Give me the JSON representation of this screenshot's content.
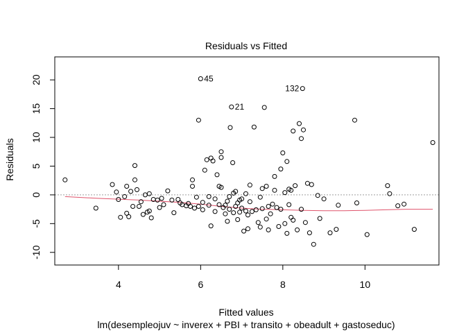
{
  "chart_data": {
    "type": "scatter",
    "title": "Residuals vs Fitted",
    "xlabel": "Fitted values",
    "subtitle": "lm(desempleojuv ~ inverex + PBI + transito + obeadult + gastoseduc)",
    "ylabel": "Residuals",
    "xlim": [
      2.45,
      11.8
    ],
    "ylim": [
      -12.2,
      24
    ],
    "xticks": [
      4,
      6,
      8,
      10
    ],
    "yticks": [
      -10,
      -5,
      0,
      5,
      10,
      15,
      20
    ],
    "reference_line_y": 0,
    "grid": false,
    "points": [
      [
        2.7,
        2.6
      ],
      [
        3.45,
        -2.3
      ],
      [
        3.85,
        1.8
      ],
      [
        3.95,
        0.5
      ],
      [
        4.0,
        -0.8
      ],
      [
        4.05,
        -3.9
      ],
      [
        4.15,
        -0.3
      ],
      [
        4.2,
        -3.2
      ],
      [
        4.2,
        1.5
      ],
      [
        4.25,
        -3.8
      ],
      [
        4.3,
        0.6
      ],
      [
        4.35,
        -2.0
      ],
      [
        4.4,
        5.1
      ],
      [
        4.4,
        2.6
      ],
      [
        4.45,
        0.9
      ],
      [
        4.5,
        -2.0
      ],
      [
        4.55,
        -1.2
      ],
      [
        4.6,
        -3.4
      ],
      [
        4.65,
        0.0
      ],
      [
        4.7,
        -3.0
      ],
      [
        4.75,
        0.2
      ],
      [
        4.75,
        -2.8
      ],
      [
        4.8,
        -4.0
      ],
      [
        4.85,
        -0.8
      ],
      [
        4.95,
        -0.9
      ],
      [
        5.0,
        -2.2
      ],
      [
        5.05,
        -0.6
      ],
      [
        5.1,
        -1.7
      ],
      [
        5.2,
        0.7
      ],
      [
        5.3,
        -0.9
      ],
      [
        5.35,
        -3.1
      ],
      [
        5.45,
        -0.8
      ],
      [
        5.5,
        -1.4
      ],
      [
        5.55,
        -1.7
      ],
      [
        5.65,
        -1.9
      ],
      [
        5.7,
        -1.5
      ],
      [
        5.75,
        -2.0
      ],
      [
        5.8,
        2.6
      ],
      [
        5.8,
        1.5
      ],
      [
        5.85,
        -2.3
      ],
      [
        5.9,
        -0.4
      ],
      [
        5.95,
        -2.0
      ],
      [
        5.95,
        13.0
      ],
      [
        6.0,
        20.2
      ],
      [
        6.05,
        -1.3
      ],
      [
        6.05,
        -2.6
      ],
      [
        6.1,
        4.3
      ],
      [
        6.15,
        6.1
      ],
      [
        6.2,
        -1.8
      ],
      [
        6.2,
        -0.3
      ],
      [
        6.25,
        -5.4
      ],
      [
        6.25,
        6.4
      ],
      [
        6.3,
        5.9
      ],
      [
        6.35,
        -2.9
      ],
      [
        6.35,
        -0.7
      ],
      [
        6.4,
        3.5
      ],
      [
        6.45,
        -1.7
      ],
      [
        6.45,
        1.5
      ],
      [
        6.5,
        1.3
      ],
      [
        6.5,
        6.5
      ],
      [
        6.5,
        7.5
      ],
      [
        6.55,
        -2.2
      ],
      [
        6.6,
        -3.3
      ],
      [
        6.6,
        -1.8
      ],
      [
        6.65,
        -1.1
      ],
      [
        6.65,
        -4.6
      ],
      [
        6.7,
        -2.5
      ],
      [
        6.7,
        -0.3
      ],
      [
        6.72,
        11.7
      ],
      [
        6.75,
        15.3
      ],
      [
        6.78,
        5.6
      ],
      [
        6.8,
        -3.1
      ],
      [
        6.8,
        0.3
      ],
      [
        6.85,
        -2.0
      ],
      [
        6.85,
        0.6
      ],
      [
        6.9,
        -4.3
      ],
      [
        6.9,
        -1.4
      ],
      [
        6.95,
        -0.9
      ],
      [
        6.95,
        -3.0
      ],
      [
        7.0,
        -0.7
      ],
      [
        7.0,
        -2.3
      ],
      [
        7.05,
        -6.3
      ],
      [
        7.1,
        -2.8
      ],
      [
        7.1,
        0.2
      ],
      [
        7.15,
        -5.9
      ],
      [
        7.15,
        -3.5
      ],
      [
        7.2,
        1.7
      ],
      [
        7.2,
        -1.2
      ],
      [
        7.25,
        -2.9
      ],
      [
        7.3,
        11.8
      ],
      [
        7.35,
        -2.6
      ],
      [
        7.4,
        -4.8
      ],
      [
        7.45,
        -5.6
      ],
      [
        7.45,
        -0.4
      ],
      [
        7.5,
        -2.4
      ],
      [
        7.5,
        1.1
      ],
      [
        7.55,
        15.2
      ],
      [
        7.6,
        -4.2
      ],
      [
        7.6,
        1.5
      ],
      [
        7.65,
        -6.1
      ],
      [
        7.65,
        -2.0
      ],
      [
        7.7,
        -3.3
      ],
      [
        7.75,
        -1.6
      ],
      [
        7.8,
        3.2
      ],
      [
        7.8,
        0.8
      ],
      [
        7.85,
        -2.2
      ],
      [
        7.9,
        -5.5
      ],
      [
        7.95,
        -2.5
      ],
      [
        7.95,
        4.5
      ],
      [
        8.0,
        7.3
      ],
      [
        8.05,
        -5.0
      ],
      [
        8.05,
        0.4
      ],
      [
        8.1,
        -6.7
      ],
      [
        8.1,
        5.8
      ],
      [
        8.15,
        -1.7
      ],
      [
        8.15,
        1.0
      ],
      [
        8.2,
        0.8
      ],
      [
        8.2,
        -3.9
      ],
      [
        8.25,
        -4.4
      ],
      [
        8.25,
        11.1
      ],
      [
        8.3,
        1.6
      ],
      [
        8.35,
        -6.1
      ],
      [
        8.4,
        12.4
      ],
      [
        8.45,
        -2.5
      ],
      [
        8.45,
        9.8
      ],
      [
        8.48,
        18.5
      ],
      [
        8.5,
        11.3
      ],
      [
        8.55,
        -4.8
      ],
      [
        8.6,
        2.0
      ],
      [
        8.65,
        -6.6
      ],
      [
        8.7,
        1.8
      ],
      [
        8.75,
        -8.6
      ],
      [
        8.85,
        -0.1
      ],
      [
        8.9,
        -4.1
      ],
      [
        9.0,
        -0.7
      ],
      [
        9.15,
        -6.6
      ],
      [
        9.3,
        -6.0
      ],
      [
        9.35,
        -1.8
      ],
      [
        9.75,
        13.0
      ],
      [
        9.8,
        -1.4
      ],
      [
        10.05,
        -6.9
      ],
      [
        10.55,
        1.6
      ],
      [
        10.6,
        0.2
      ],
      [
        10.8,
        -1.9
      ],
      [
        10.95,
        -1.6
      ],
      [
        11.2,
        -6.0
      ],
      [
        11.65,
        9.1
      ]
    ],
    "labels": [
      {
        "text": "45",
        "x": 6.0,
        "y": 20.2
      },
      {
        "text": "21",
        "x": 6.75,
        "y": 15.3
      },
      {
        "text": "132",
        "x": 8.48,
        "y": 18.5
      }
    ],
    "smooth_line": [
      [
        2.7,
        -0.3
      ],
      [
        3.5,
        -0.6
      ],
      [
        4.5,
        -0.9
      ],
      [
        5.5,
        -1.3
      ],
      [
        6.0,
        -1.6
      ],
      [
        6.5,
        -2.0
      ],
      [
        7.0,
        -2.3
      ],
      [
        7.5,
        -2.5
      ],
      [
        8.0,
        -2.6
      ],
      [
        8.5,
        -2.7
      ],
      [
        9.0,
        -2.75
      ],
      [
        9.5,
        -2.75
      ],
      [
        10.0,
        -2.7
      ],
      [
        10.5,
        -2.6
      ],
      [
        11.0,
        -2.5
      ],
      [
        11.65,
        -2.5
      ]
    ],
    "colors": {
      "smooth": "#DF536B",
      "reference": "#9E9E9E",
      "point": "#000000"
    }
  }
}
